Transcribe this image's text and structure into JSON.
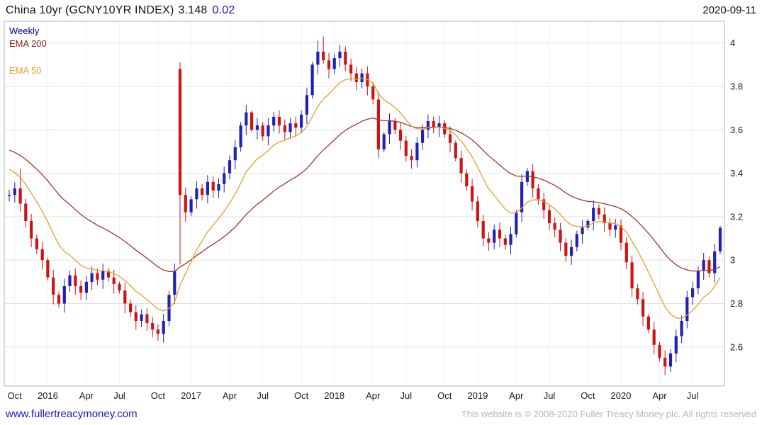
{
  "header": {
    "title": "China 10yr (GCNY10YR INDEX)",
    "price": "3.148",
    "change": "0.02",
    "date": "2020-09-11"
  },
  "legend": {
    "weekly": "Weekly",
    "ema200": "EMA 200",
    "ema50": "EMA 50"
  },
  "footer": {
    "link": "www.fullertreacymoney.com",
    "copyright": "This website is © 2008-2020 Fuller Treacy Money plc. All rights reserved"
  },
  "chart_data": {
    "type": "candlestick",
    "title": "China 10yr (GCNY10YR INDEX)",
    "timeframe": "Weekly",
    "last_price": 3.148,
    "change": 0.02,
    "ylim": [
      2.42,
      4.1
    ],
    "grid": true,
    "y_ticks": [
      {
        "v": 4,
        "label": "4"
      },
      {
        "v": 3.8,
        "label": "3.8"
      },
      {
        "v": 3.6,
        "label": "3.6"
      },
      {
        "v": 3.4,
        "label": "3.4"
      },
      {
        "v": 3.2,
        "label": "3.2"
      },
      {
        "v": 3,
        "label": "3"
      },
      {
        "v": 2.8,
        "label": "2.8"
      },
      {
        "v": 2.6,
        "label": "2.6"
      }
    ],
    "x_ticks": [
      {
        "i": 1,
        "label": "Oct"
      },
      {
        "i": 7,
        "label": "2016"
      },
      {
        "i": 14,
        "label": "Apr"
      },
      {
        "i": 20,
        "label": "Jul"
      },
      {
        "i": 27,
        "label": "Oct"
      },
      {
        "i": 33,
        "label": "2017"
      },
      {
        "i": 40,
        "label": "Apr"
      },
      {
        "i": 46,
        "label": "Jul"
      },
      {
        "i": 53,
        "label": "Oct"
      },
      {
        "i": 59,
        "label": "2018"
      },
      {
        "i": 66,
        "label": "Apr"
      },
      {
        "i": 72,
        "label": "Jul"
      },
      {
        "i": 79,
        "label": "Oct"
      },
      {
        "i": 85,
        "label": "2019"
      },
      {
        "i": 92,
        "label": "Apr"
      },
      {
        "i": 98,
        "label": "Jul"
      },
      {
        "i": 105,
        "label": "Oct"
      },
      {
        "i": 111,
        "label": "2020"
      },
      {
        "i": 118,
        "label": "Apr"
      },
      {
        "i": 124,
        "label": "Jul"
      }
    ],
    "closes": [
      3.3,
      3.33,
      3.26,
      3.18,
      3.1,
      3.05,
      3.0,
      2.92,
      2.84,
      2.8,
      2.88,
      2.93,
      2.88,
      2.85,
      2.9,
      2.94,
      2.91,
      2.95,
      2.92,
      2.89,
      2.86,
      2.8,
      2.76,
      2.72,
      2.75,
      2.71,
      2.68,
      2.66,
      2.72,
      2.84,
      2.95,
      3.3,
      3.22,
      3.28,
      3.33,
      3.3,
      3.36,
      3.32,
      3.35,
      3.4,
      3.46,
      3.52,
      3.62,
      3.68,
      3.6,
      3.62,
      3.57,
      3.62,
      3.66,
      3.62,
      3.59,
      3.63,
      3.61,
      3.67,
      3.76,
      3.9,
      3.96,
      3.92,
      3.88,
      3.93,
      3.96,
      3.9,
      3.86,
      3.82,
      3.86,
      3.8,
      3.74,
      3.51,
      3.58,
      3.64,
      3.6,
      3.55,
      3.48,
      3.46,
      3.54,
      3.6,
      3.64,
      3.61,
      3.63,
      3.58,
      3.54,
      3.47,
      3.4,
      3.34,
      3.27,
      3.18,
      3.1,
      3.08,
      3.14,
      3.1,
      3.07,
      3.12,
      3.22,
      3.36,
      3.41,
      3.33,
      3.28,
      3.23,
      3.17,
      3.14,
      3.08,
      3.02,
      3.06,
      3.12,
      3.15,
      3.18,
      3.24,
      3.21,
      3.17,
      3.14,
      3.16,
      3.08,
      2.99,
      2.87,
      2.82,
      2.74,
      2.68,
      2.61,
      2.55,
      2.51,
      2.57,
      2.65,
      2.72,
      2.83,
      2.87,
      2.95,
      3.0,
      2.94,
      3.04,
      3.148
    ],
    "wick_overrides": {
      "2": {
        "h": 3.42
      },
      "31": {
        "o": 3.88,
        "h": 3.91,
        "l": 2.98,
        "red": true
      },
      "56": {
        "h": 4.01
      },
      "57": {
        "h": 4.03
      },
      "67": {
        "l": 3.47
      },
      "119": {
        "l": 2.47
      }
    },
    "emas": [
      {
        "name": "EMA 200",
        "k": 0.06,
        "seed": 3.52,
        "color": "#9e3434"
      },
      {
        "name": "EMA 50",
        "k": 0.16,
        "seed": 3.44,
        "color": "#e2a030"
      }
    ],
    "colors": {
      "up": "#2121b4",
      "down": "#cc1414",
      "grid": "#e2e2e2",
      "vgrid": "#f2f2f2",
      "border": "#a9b6c6",
      "tick_text": "#1a1a1a"
    }
  }
}
